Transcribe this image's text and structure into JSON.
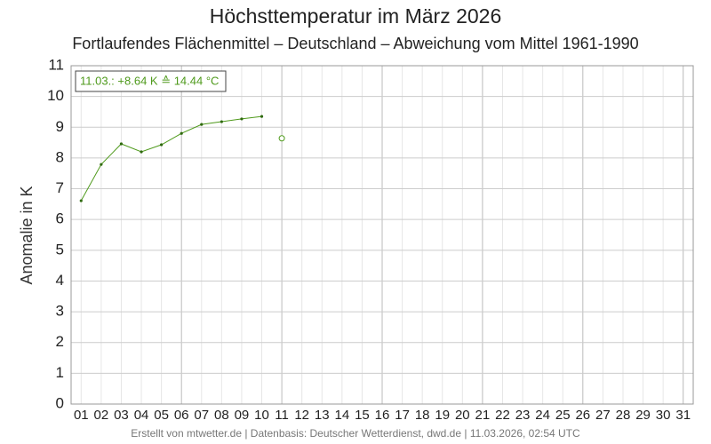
{
  "chart_data": {
    "type": "line",
    "title": "Höchsttemperatur im März 2026",
    "subtitle": "Fortlaufendes Flächenmittel – Deutschland – Abweichung vom Mittel 1961-1990",
    "y_label": "Anomalie in K",
    "annotation": "11.03.: +8.64 K ≙ 14.44 °C",
    "footer": "Erstellt von mtwetter.de | Datenbasis: Deutscher Wetterdienst, dwd.de | 11.03.2026, 02:54 UTC",
    "categories": [
      "01",
      "02",
      "03",
      "04",
      "05",
      "06",
      "07",
      "08",
      "09",
      "10",
      "11",
      "12",
      "13",
      "14",
      "15",
      "16",
      "17",
      "18",
      "19",
      "20",
      "21",
      "22",
      "23",
      "24",
      "25",
      "26",
      "27",
      "28",
      "29",
      "30",
      "31"
    ],
    "series": [
      {
        "color": "#4f9a1c",
        "values": [
          6.61,
          7.79,
          8.46,
          8.2,
          8.43,
          8.8,
          9.09,
          9.18,
          9.27,
          9.35,
          null,
          null,
          null,
          null,
          null,
          null,
          null,
          null,
          null,
          null,
          null,
          null,
          null,
          null,
          null,
          null,
          null,
          null,
          null,
          null,
          null
        ]
      },
      {
        "color": "#4f9a1c",
        "values": [
          null,
          null,
          null,
          null,
          null,
          null,
          null,
          null,
          null,
          null,
          8.64,
          null,
          null,
          null,
          null,
          null,
          null,
          null,
          null,
          null,
          null,
          null,
          null,
          null,
          null,
          null,
          null,
          null,
          null,
          null,
          null
        ]
      }
    ],
    "ylim": [
      0,
      11
    ],
    "yticks": [
      0,
      1,
      2,
      3,
      4,
      5,
      6,
      7,
      8,
      9,
      10,
      11
    ],
    "grid": true
  }
}
